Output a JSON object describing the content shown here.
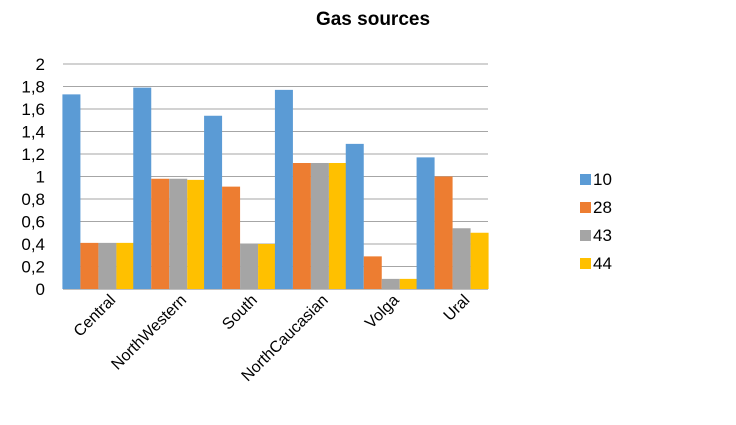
{
  "chart_data": {
    "type": "bar",
    "title": "Gas sources",
    "xlabel": "",
    "ylabel": "",
    "categories": [
      "Central",
      "NorthWestern",
      "South",
      "NorthCaucasian",
      "Volga",
      "Ural"
    ],
    "series": [
      {
        "name": "10",
        "color": "#5b9bd5",
        "values": [
          1.73,
          1.79,
          1.54,
          1.77,
          1.29,
          1.17
        ]
      },
      {
        "name": "28",
        "color": "#ed7d31",
        "values": [
          0.41,
          0.98,
          0.91,
          1.12,
          0.29,
          1.0
        ]
      },
      {
        "name": "43",
        "color": "#a5a5a5",
        "values": [
          0.41,
          0.98,
          0.4,
          1.12,
          0.09,
          0.54
        ]
      },
      {
        "name": "44",
        "color": "#ffc000",
        "values": [
          0.41,
          0.97,
          0.4,
          1.12,
          0.09,
          0.5
        ]
      }
    ],
    "yticks": [
      "0",
      "0,2",
      "0,4",
      "0,6",
      "0,8",
      "1",
      "1,2",
      "1,4",
      "1,6",
      "1,8",
      "2"
    ],
    "ylim": [
      0,
      2
    ],
    "grid": true,
    "legend": "right"
  }
}
